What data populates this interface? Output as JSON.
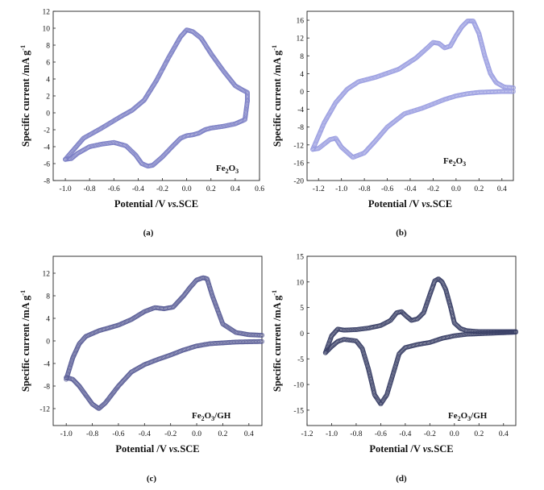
{
  "chart_data": [
    {
      "id": "a",
      "type": "line",
      "caption": "(a)",
      "annotation": {
        "text": "Fe",
        "sub": "2",
        "text2": "O",
        "sub2": "3"
      },
      "xlabel": {
        "pre": "Potential /V ",
        "italic": "vs.",
        "post": "SCE"
      },
      "ylabel": {
        "text": "Specific current /mA g",
        "sup": "-1"
      },
      "xlim": [
        -1.1,
        0.6
      ],
      "ylim": [
        -8,
        12
      ],
      "xticks": [
        -1.0,
        -0.8,
        -0.6,
        -0.4,
        -0.2,
        0.0,
        0.2,
        0.4,
        0.6
      ],
      "xtick_labels": [
        "-1.0",
        "-0.8",
        "-0.6",
        "-0.4",
        "-0.2",
        "0.0",
        "0.2",
        "0.4",
        "0.6"
      ],
      "yticks": [
        -8,
        -6,
        -4,
        -2,
        0,
        2,
        4,
        6,
        8,
        10,
        12
      ],
      "ytick_labels": [
        "-8",
        "-6",
        "-4",
        "-2",
        "0",
        "2",
        "4",
        "6",
        "8",
        "10",
        "12"
      ],
      "color": "#7a7ec4",
      "series": [
        {
          "x": [
            -1.0,
            -0.85,
            -0.7,
            -0.55,
            -0.45,
            -0.35,
            -0.25,
            -0.15,
            -0.05,
            0.0,
            0.05,
            0.12,
            0.2,
            0.3,
            0.4,
            0.46,
            0.5,
            0.5
          ],
          "y": [
            -5.5,
            -3.0,
            -1.8,
            -0.5,
            0.3,
            1.5,
            3.8,
            6.5,
            9.0,
            9.8,
            9.6,
            8.8,
            7.0,
            5.0,
            3.2,
            2.7,
            2.4,
            1.4
          ]
        },
        {
          "x": [
            0.5,
            0.48,
            0.4,
            0.3,
            0.2,
            0.15,
            0.1,
            0.05,
            0.0,
            -0.05,
            -0.12,
            -0.2,
            -0.28,
            -0.32,
            -0.37,
            -0.42,
            -0.5,
            -0.6,
            -0.7,
            -0.8,
            -0.9,
            -0.95,
            -1.0
          ],
          "y": [
            1.4,
            -0.8,
            -1.3,
            -1.6,
            -1.8,
            -2.0,
            -2.4,
            -2.6,
            -2.7,
            -3.0,
            -4.0,
            -5.2,
            -6.2,
            -6.3,
            -6.0,
            -5.0,
            -3.9,
            -3.5,
            -3.7,
            -4.0,
            -4.8,
            -5.4,
            -5.5
          ]
        }
      ]
    },
    {
      "id": "b",
      "type": "line",
      "caption": "(b)",
      "annotation": {
        "text": "Fe",
        "sub": "2",
        "text2": "O",
        "sub2": "3"
      },
      "xlabel": {
        "pre": "Potential /V ",
        "italic": "vs.",
        "post": "SCE"
      },
      "ylabel": {
        "text": "Specific current /mA g",
        "sup": "-1"
      },
      "xlim": [
        -1.3,
        0.5
      ],
      "ylim": [
        -20,
        18
      ],
      "xticks": [
        -1.2,
        -1.0,
        -0.8,
        -0.6,
        -0.4,
        -0.2,
        0.0,
        0.2,
        0.4
      ],
      "xtick_labels": [
        "-1.2",
        "-1.0",
        "-0.8",
        "-0.6",
        "-0.4",
        "-0.2",
        "0.0",
        "0.2",
        "0.4"
      ],
      "yticks": [
        -20,
        -16,
        -12,
        -8,
        -4,
        0,
        4,
        8,
        12,
        16
      ],
      "ytick_labels": [
        "-20",
        "-16",
        "-12",
        "-8",
        "-4",
        "0",
        "4",
        "8",
        "12",
        "16"
      ],
      "color": "#9a9ee0",
      "series": [
        {
          "x": [
            -1.25,
            -1.15,
            -1.05,
            -0.95,
            -0.85,
            -0.7,
            -0.5,
            -0.35,
            -0.25,
            -0.2,
            -0.15,
            -0.1,
            -0.05,
            0.0,
            0.05,
            0.1,
            0.15,
            0.2,
            0.25,
            0.3,
            0.35,
            0.42,
            0.5
          ],
          "y": [
            -13.0,
            -7.0,
            -2.5,
            0.5,
            2.2,
            3.2,
            5.0,
            7.5,
            9.8,
            11.0,
            10.8,
            9.8,
            10.2,
            12.5,
            14.5,
            15.8,
            15.8,
            13.0,
            8.0,
            4.0,
            2.0,
            1.0,
            0.8
          ]
        },
        {
          "x": [
            0.5,
            0.4,
            0.3,
            0.2,
            0.1,
            0.0,
            -0.1,
            -0.2,
            -0.3,
            -0.45,
            -0.6,
            -0.7,
            -0.8,
            -0.9,
            -1.0,
            -1.05,
            -1.1,
            -1.2,
            -1.25
          ],
          "y": [
            0.0,
            0.0,
            -0.1,
            -0.2,
            -0.5,
            -1.0,
            -1.8,
            -2.8,
            -3.8,
            -5.0,
            -8.0,
            -11.0,
            -13.8,
            -14.8,
            -12.5,
            -10.5,
            -10.8,
            -12.8,
            -13.0
          ]
        }
      ]
    },
    {
      "id": "c",
      "type": "line",
      "caption": "(c)",
      "annotation": {
        "text": "Fe",
        "sub": "2",
        "text2": "O",
        "sub2": "3",
        "suffix": "/GH"
      },
      "xlabel": {
        "pre": "Potential /V ",
        "italic": "vs.",
        "post": "SCE"
      },
      "ylabel": {
        "text": "Specific current /mA g",
        "sup": "-1"
      },
      "xlim": [
        -1.1,
        0.5
      ],
      "ylim": [
        -15,
        15
      ],
      "xticks": [
        -1.0,
        -0.8,
        -0.6,
        -0.4,
        -0.2,
        0.0,
        0.2,
        0.4
      ],
      "xtick_labels": [
        "-1.0",
        "-0.8",
        "-0.6",
        "-0.4",
        "-0.2",
        "0.0",
        "0.2",
        "0.4"
      ],
      "yticks": [
        -12,
        -8,
        -4,
        0,
        4,
        8,
        12
      ],
      "ytick_labels": [
        "-12",
        "-8",
        "-4",
        "0",
        "4",
        "8",
        "12"
      ],
      "color": "#5a5e96",
      "series": [
        {
          "x": [
            -1.0,
            -0.95,
            -0.9,
            -0.85,
            -0.75,
            -0.6,
            -0.5,
            -0.4,
            -0.32,
            -0.25,
            -0.18,
            -0.1,
            -0.05,
            0.0,
            0.05,
            0.08,
            0.12,
            0.2,
            0.3,
            0.4,
            0.5
          ],
          "y": [
            -6.8,
            -3.0,
            -0.5,
            0.8,
            1.8,
            2.8,
            3.8,
            5.2,
            5.9,
            5.7,
            6.0,
            8.0,
            9.5,
            10.8,
            11.2,
            11.0,
            8.0,
            3.0,
            1.5,
            1.1,
            1.0
          ]
        },
        {
          "x": [
            0.5,
            0.3,
            0.1,
            0.0,
            -0.1,
            -0.2,
            -0.3,
            -0.4,
            -0.5,
            -0.6,
            -0.7,
            -0.75,
            -0.8,
            -0.9,
            -0.95,
            -1.0
          ],
          "y": [
            -0.1,
            -0.2,
            -0.5,
            -0.9,
            -1.6,
            -2.5,
            -3.3,
            -4.2,
            -5.5,
            -8.0,
            -11.0,
            -12.0,
            -11.2,
            -8.0,
            -6.8,
            -6.5
          ]
        }
      ]
    },
    {
      "id": "d",
      "type": "line",
      "caption": "(d)",
      "annotation": {
        "text": "Fe",
        "sub": "2",
        "text2": "O",
        "sub2": "3",
        "suffix": "/GH"
      },
      "xlabel": {
        "pre": "Potential /V ",
        "italic": "vs.",
        "post": "SCE"
      },
      "ylabel": {
        "text": "Specific current /mA g",
        "sup": "-1"
      },
      "xlim": [
        -1.2,
        0.5
      ],
      "ylim": [
        -18,
        15
      ],
      "xticks": [
        -1.2,
        -1.0,
        -0.8,
        -0.6,
        -0.4,
        -0.2,
        0.0,
        0.2,
        0.4
      ],
      "xtick_labels": [
        "-1.2",
        "-1.0",
        "-0.8",
        "-0.6",
        "-0.4",
        "-0.2",
        "0.0",
        "0.2",
        "0.4"
      ],
      "yticks": [
        -15,
        -10,
        -5,
        0,
        5,
        10,
        15
      ],
      "ytick_labels": [
        "-15",
        "-10",
        "-5",
        "0",
        "5",
        "10",
        "15"
      ],
      "color": "#3a4066",
      "series": [
        {
          "x": [
            -1.05,
            -1.0,
            -0.95,
            -0.9,
            -0.8,
            -0.7,
            -0.6,
            -0.52,
            -0.47,
            -0.43,
            -0.4,
            -0.35,
            -0.3,
            -0.25,
            -0.2,
            -0.16,
            -0.13,
            -0.1,
            -0.07,
            -0.03,
            0.0,
            0.05,
            0.1,
            0.2,
            0.3,
            0.5
          ],
          "y": [
            -3.8,
            -0.5,
            0.8,
            0.6,
            0.7,
            1.0,
            1.5,
            2.5,
            4.0,
            4.2,
            3.5,
            2.5,
            2.8,
            4.0,
            7.5,
            10.2,
            10.6,
            10.0,
            8.5,
            5.0,
            2.0,
            0.9,
            0.5,
            0.3,
            0.3,
            0.3
          ]
        },
        {
          "x": [
            0.5,
            0.3,
            0.1,
            0.0,
            -0.1,
            -0.2,
            -0.3,
            -0.4,
            -0.45,
            -0.5,
            -0.55,
            -0.6,
            -0.65,
            -0.7,
            -0.75,
            -0.8,
            -0.9,
            -0.95,
            -1.0,
            -1.05
          ],
          "y": [
            0.2,
            0.0,
            -0.2,
            -0.5,
            -1.0,
            -1.8,
            -2.2,
            -2.8,
            -4.0,
            -8.0,
            -12.0,
            -13.8,
            -12.0,
            -7.0,
            -3.0,
            -1.5,
            -1.2,
            -1.6,
            -2.6,
            -3.8
          ]
        }
      ]
    }
  ]
}
